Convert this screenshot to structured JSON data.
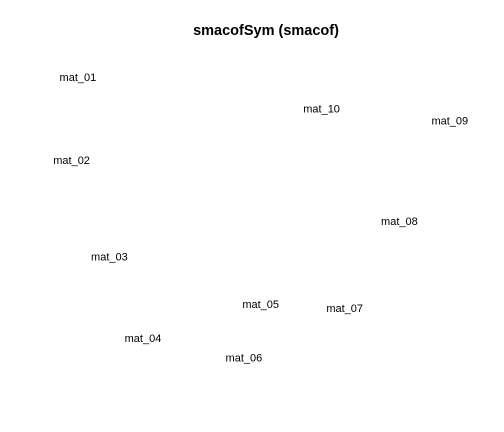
{
  "chart_data": {
    "type": "scatter",
    "title": "smacofSym (smacof)",
    "xlabel": "",
    "ylabel": "",
    "grid": false,
    "axes_shown": false,
    "points": [
      {
        "label": "mat_01",
        "x": -1.07,
        "y": 0.93
      },
      {
        "label": "mat_02",
        "x": -1.1,
        "y": 0.51
      },
      {
        "label": "mat_03",
        "x": -0.92,
        "y": 0.02
      },
      {
        "label": "mat_04",
        "x": -0.76,
        "y": -0.39
      },
      {
        "label": "mat_05",
        "x": -0.2,
        "y": -0.22
      },
      {
        "label": "mat_06",
        "x": -0.28,
        "y": -0.49
      },
      {
        "label": "mat_07",
        "x": 0.2,
        "y": -0.24
      },
      {
        "label": "mat_08",
        "x": 0.46,
        "y": 0.2
      },
      {
        "label": "mat_09",
        "x": 0.7,
        "y": 0.71
      },
      {
        "label": "mat_10",
        "x": 0.09,
        "y": 0.77
      }
    ],
    "xlim": [
      -1.16,
      0.82
    ],
    "ylim": [
      -0.72,
      1.02
    ]
  }
}
